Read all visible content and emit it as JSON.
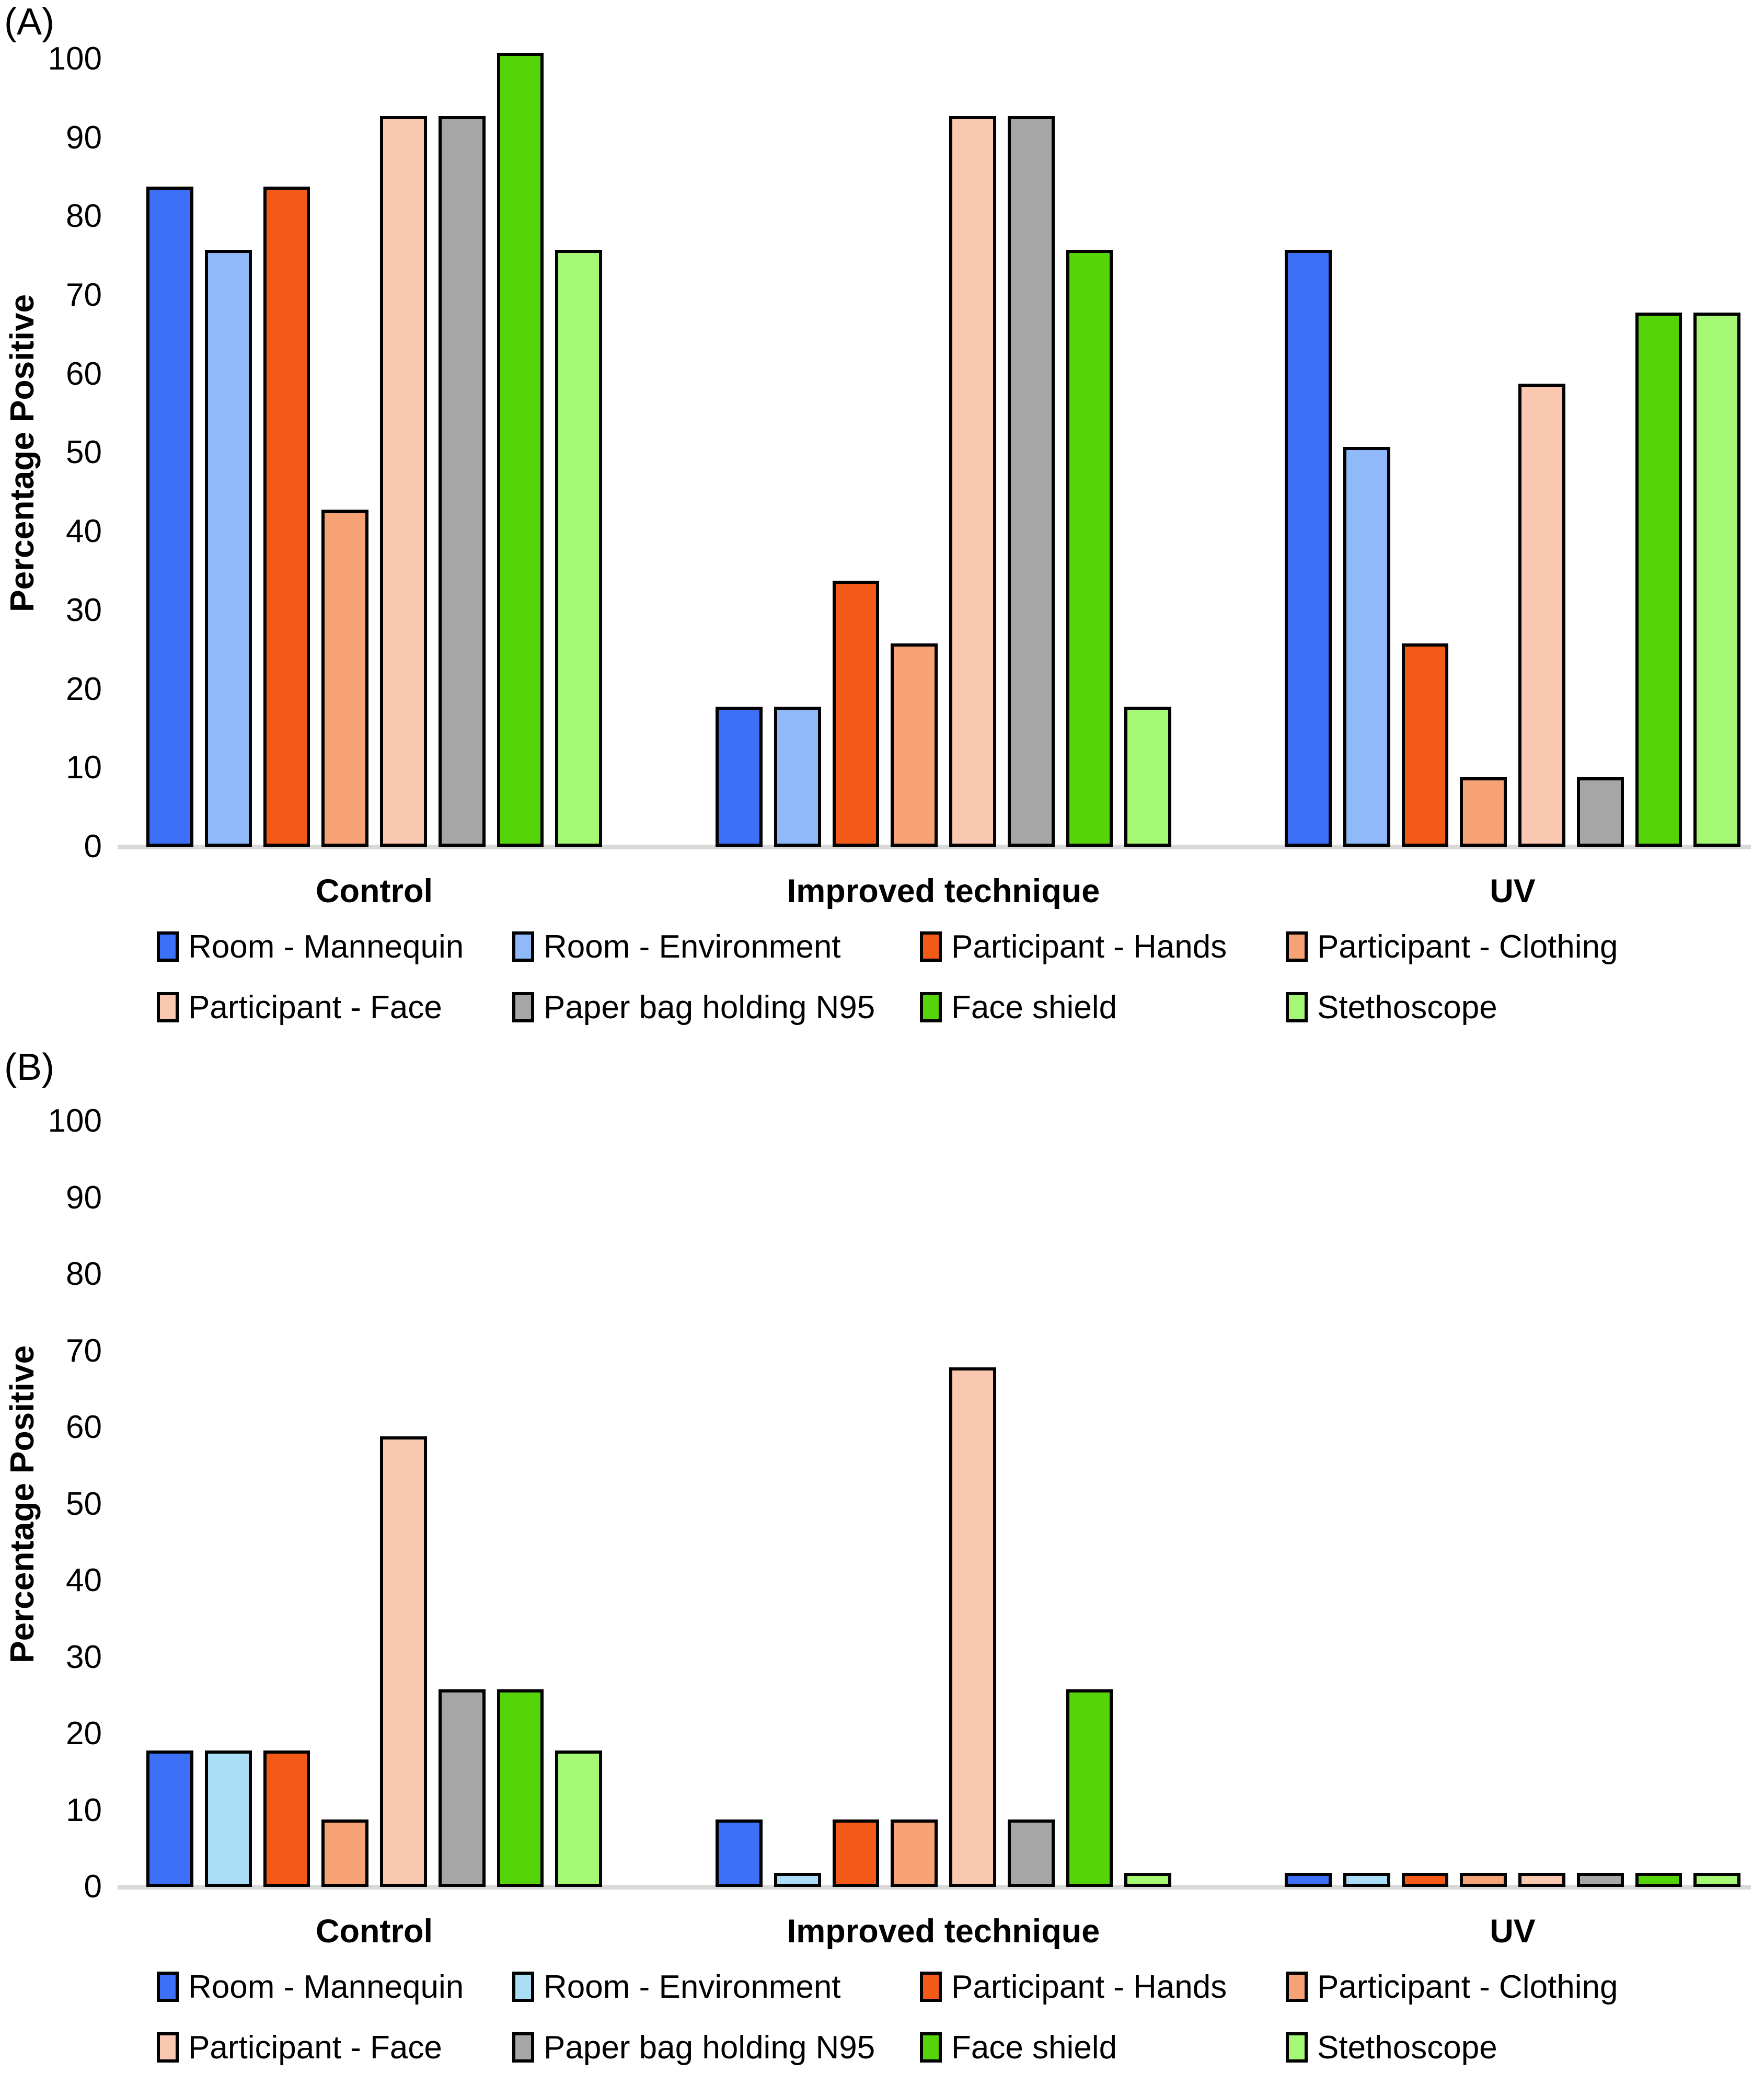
{
  "chart_data": [
    {
      "type": "bar",
      "panel_label": "(A)",
      "title": "",
      "xlabel": "",
      "ylabel": "Percentage Positive",
      "ylim": [
        0,
        100
      ],
      "ytick_step": 10,
      "yticks": [
        100,
        90,
        80,
        70,
        60,
        50,
        40,
        30,
        20,
        10,
        0
      ],
      "grid": "off",
      "legend_position": "bottom",
      "categories": [
        "Control",
        "Improved technique",
        "UV"
      ],
      "series": [
        {
          "name": "Room - Mannequin",
          "color": "#3B70F7",
          "values": [
            83,
            17,
            75
          ]
        },
        {
          "name": "Room - Environment",
          "color": "#8FB9F9",
          "values": [
            75,
            17,
            50
          ]
        },
        {
          "name": "Participant - Hands",
          "color": "#F45A17",
          "values": [
            83,
            33,
            25
          ]
        },
        {
          "name": "Participant - Clothing",
          "color": "#F8A376",
          "values": [
            42,
            25,
            8
          ]
        },
        {
          "name": "Participant - Face",
          "color": "#FAC7B0",
          "values": [
            92,
            92,
            58
          ]
        },
        {
          "name": "Paper bag holding N95",
          "color": "#A6A6A6",
          "values": [
            92,
            92,
            8
          ]
        },
        {
          "name": "Face shield",
          "color": "#55D40A",
          "values": [
            100,
            75,
            67
          ]
        },
        {
          "name": "Stethoscope",
          "color": "#A5F873",
          "values": [
            75,
            17,
            67
          ]
        }
      ]
    },
    {
      "type": "bar",
      "panel_label": "(B)",
      "title": "",
      "xlabel": "",
      "ylabel": "Percentage Positive",
      "ylim": [
        0,
        100
      ],
      "ytick_step": 10,
      "yticks": [
        100,
        90,
        80,
        70,
        60,
        50,
        40,
        30,
        20,
        10,
        0
      ],
      "grid": "off",
      "legend_position": "bottom",
      "categories": [
        "Control",
        "Improved technique",
        "UV"
      ],
      "series": [
        {
          "name": "Room - Mannequin",
          "color": "#3B70F7",
          "values": [
            17,
            8,
            1
          ]
        },
        {
          "name": "Room - Environment",
          "color": "#AADEF7",
          "values": [
            17,
            1,
            1
          ]
        },
        {
          "name": "Participant - Hands",
          "color": "#F45A17",
          "values": [
            17,
            8,
            1
          ]
        },
        {
          "name": "Participant - Clothing",
          "color": "#F8A376",
          "values": [
            8,
            8,
            1
          ]
        },
        {
          "name": "Participant - Face",
          "color": "#FAC7B0",
          "values": [
            58,
            67,
            1
          ]
        },
        {
          "name": "Paper bag holding N95",
          "color": "#A6A6A6",
          "values": [
            25,
            8,
            1
          ]
        },
        {
          "name": "Face shield",
          "color": "#55D40A",
          "values": [
            25,
            25,
            1
          ]
        },
        {
          "name": "Stethoscope",
          "color": "#A5F873",
          "values": [
            17,
            1,
            1
          ]
        }
      ]
    }
  ]
}
